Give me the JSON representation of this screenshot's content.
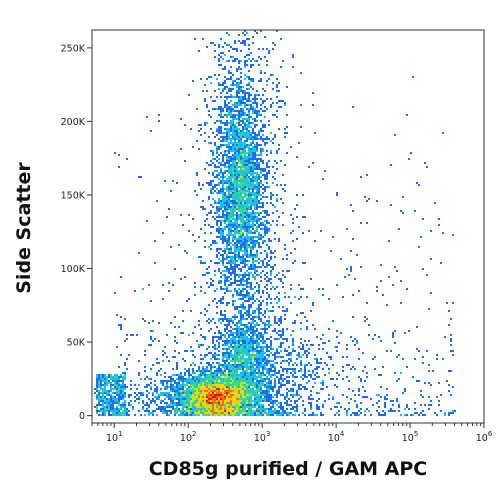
{
  "chart_data": {
    "type": "scatter",
    "subtype": "flow-cytometry density dot plot",
    "title": "",
    "xlabel": "CD85g purified / GAM APC",
    "ylabel": "Side Scatter",
    "x_scale": "log",
    "xlim": [
      5,
      1000000
    ],
    "ylim": [
      -5000,
      262144
    ],
    "x_ticks": [
      {
        "value": 10,
        "base": "10",
        "exp": "1"
      },
      {
        "value": 100,
        "base": "10",
        "exp": "2"
      },
      {
        "value": 1000,
        "base": "10",
        "exp": "3"
      },
      {
        "value": 10000,
        "base": "10",
        "exp": "4"
      },
      {
        "value": 100000,
        "base": "10",
        "exp": "5"
      },
      {
        "value": 1000000,
        "base": "10",
        "exp": "6"
      }
    ],
    "y_ticks": [
      {
        "value": 0,
        "label": "0"
      },
      {
        "value": 50000,
        "label": "50K"
      },
      {
        "value": 100000,
        "label": "100K"
      },
      {
        "value": 150000,
        "label": "150K"
      },
      {
        "value": 200000,
        "label": "200K"
      },
      {
        "value": 250000,
        "label": "250K"
      }
    ],
    "grid": false,
    "legend": "none",
    "populations": [
      {
        "x_center": 250,
        "y_center": 12000,
        "x_spread_log": 0.22,
        "y_spread": 7000,
        "weight": 0.3,
        "peak_color": "#e8120a"
      },
      {
        "x_center": 200,
        "y_center": 14000,
        "x_spread_log": 0.45,
        "y_spread": 9000,
        "weight": 0.14
      },
      {
        "x_center": 500,
        "y_center": 155000,
        "x_spread_log": 0.16,
        "y_spread": 32000,
        "weight": 0.24,
        "peak_color": "#4cd23a"
      },
      {
        "x_center": 560,
        "y_center": 40000,
        "x_spread_log": 0.18,
        "y_spread": 14000,
        "weight": 0.08
      },
      {
        "x_center": 600,
        "y_center": 90000,
        "x_spread_log": 0.3,
        "y_spread": 55000,
        "weight": 0.1
      },
      {
        "x_center": 1000,
        "y_center": 30000,
        "x_spread_log": 0.55,
        "y_spread": 18000,
        "weight": 0.08
      },
      {
        "x_center": 550,
        "y_center": 210000,
        "x_spread_log": 0.3,
        "y_spread": 40000,
        "weight": 0.06
      }
    ],
    "density_colors": [
      "#0a1cd8",
      "#1e6cf2",
      "#19c2e8",
      "#3fdc78",
      "#b9e81c",
      "#f5d20e",
      "#f07010",
      "#e8120a"
    ]
  }
}
